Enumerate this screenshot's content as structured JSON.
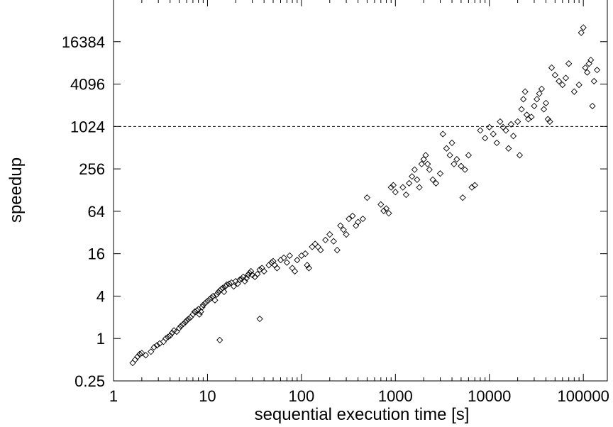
{
  "chart_data": {
    "type": "scatter",
    "title": "",
    "xlabel": "sequential execution time [s]",
    "ylabel": "speedup",
    "xscale": "log",
    "yscale": "log",
    "xlim": [
      1,
      180000
    ],
    "ylim": [
      0.25,
      65536
    ],
    "grid": false,
    "legend": "none",
    "marker": "diamond",
    "marker_color": "#000000",
    "x_ticks": [
      1,
      10,
      100,
      1000,
      10000,
      100000
    ],
    "x_tick_labels": [
      "1",
      "10",
      "100",
      "1000",
      "10000",
      "100000"
    ],
    "y_ticks": [
      0.25,
      1,
      4,
      16,
      64,
      256,
      1024,
      4096,
      16384
    ],
    "y_tick_labels": [
      "0.25",
      "1",
      "4",
      "16",
      "64",
      "256",
      "1024",
      "4096",
      "16384"
    ],
    "reference_line": {
      "y": 1024,
      "style": "dashed"
    },
    "points": [
      [
        1.6,
        0.45
      ],
      [
        1.7,
        0.5
      ],
      [
        1.8,
        0.55
      ],
      [
        1.9,
        0.6
      ],
      [
        2.0,
        0.62
      ],
      [
        2.2,
        0.58
      ],
      [
        2.5,
        0.65
      ],
      [
        2.7,
        0.75
      ],
      [
        2.9,
        0.8
      ],
      [
        3.1,
        0.85
      ],
      [
        3.4,
        0.9
      ],
      [
        3.6,
        1.0
      ],
      [
        3.8,
        1.05
      ],
      [
        4.0,
        1.1
      ],
      [
        4.2,
        1.2
      ],
      [
        4.4,
        1.3
      ],
      [
        4.7,
        1.25
      ],
      [
        5.0,
        1.4
      ],
      [
        5.2,
        1.5
      ],
      [
        5.5,
        1.6
      ],
      [
        5.8,
        1.7
      ],
      [
        6.0,
        1.8
      ],
      [
        6.3,
        1.9
      ],
      [
        6.6,
        2.0
      ],
      [
        7.0,
        2.2
      ],
      [
        7.3,
        2.4
      ],
      [
        7.7,
        2.5
      ],
      [
        8.0,
        2.6
      ],
      [
        8.2,
        2.2
      ],
      [
        8.5,
        2.4
      ],
      [
        8.8,
        2.8
      ],
      [
        9.0,
        3.0
      ],
      [
        9.5,
        3.2
      ],
      [
        10,
        3.4
      ],
      [
        10.5,
        3.6
      ],
      [
        11,
        3.8
      ],
      [
        11.5,
        4.0
      ],
      [
        12,
        3.5
      ],
      [
        12.5,
        4.2
      ],
      [
        13,
        4.5
      ],
      [
        13.5,
        4.8
      ],
      [
        14,
        5.0
      ],
      [
        14.5,
        5.2
      ],
      [
        15,
        4.6
      ],
      [
        15.5,
        5.5
      ],
      [
        16,
        5.8
      ],
      [
        17,
        6.0
      ],
      [
        18,
        6.2
      ],
      [
        19,
        5.5
      ],
      [
        20,
        6.5
      ],
      [
        21,
        6.0
      ],
      [
        22,
        6.8
      ],
      [
        23,
        7.0
      ],
      [
        24,
        7.5
      ],
      [
        25,
        6.5
      ],
      [
        26,
        7.2
      ],
      [
        27,
        8.0
      ],
      [
        28,
        8.5
      ],
      [
        29,
        9.0
      ],
      [
        30,
        8.0
      ],
      [
        32,
        7.5
      ],
      [
        34,
        8.2
      ],
      [
        36,
        9.5
      ],
      [
        38,
        10
      ],
      [
        40,
        9.0
      ],
      [
        45,
        11
      ],
      [
        48,
        12
      ],
      [
        50,
        12.5
      ],
      [
        52,
        11
      ],
      [
        55,
        10
      ],
      [
        60,
        13
      ],
      [
        65,
        14
      ],
      [
        70,
        12
      ],
      [
        75,
        15
      ],
      [
        80,
        10
      ],
      [
        85,
        9
      ],
      [
        90,
        13
      ],
      [
        100,
        15
      ],
      [
        110,
        16
      ],
      [
        115,
        11
      ],
      [
        120,
        10
      ],
      [
        130,
        20
      ],
      [
        140,
        22
      ],
      [
        150,
        20
      ],
      [
        160,
        18
      ],
      [
        180,
        25
      ],
      [
        200,
        30
      ],
      [
        220,
        24
      ],
      [
        240,
        18
      ],
      [
        260,
        40
      ],
      [
        280,
        35
      ],
      [
        300,
        30
      ],
      [
        320,
        50
      ],
      [
        350,
        55
      ],
      [
        380,
        40
      ],
      [
        400,
        45
      ],
      [
        450,
        50
      ],
      [
        500,
        100
      ],
      [
        700,
        80
      ],
      [
        750,
        65
      ],
      [
        800,
        70
      ],
      [
        850,
        60
      ],
      [
        900,
        140
      ],
      [
        950,
        150
      ],
      [
        1000,
        120
      ],
      [
        1200,
        140
      ],
      [
        1300,
        110
      ],
      [
        1400,
        160
      ],
      [
        1500,
        200
      ],
      [
        1600,
        250
      ],
      [
        1700,
        180
      ],
      [
        1800,
        140
      ],
      [
        1900,
        300
      ],
      [
        2000,
        350
      ],
      [
        2100,
        400
      ],
      [
        2200,
        300
      ],
      [
        2300,
        250
      ],
      [
        2500,
        180
      ],
      [
        2700,
        160
      ],
      [
        3000,
        220
      ],
      [
        3200,
        800
      ],
      [
        3500,
        500
      ],
      [
        3800,
        400
      ],
      [
        4000,
        600
      ],
      [
        4200,
        300
      ],
      [
        4500,
        350
      ],
      [
        5000,
        280
      ],
      [
        5200,
        100
      ],
      [
        5500,
        250
      ],
      [
        6000,
        400
      ],
      [
        6500,
        140
      ],
      [
        7000,
        150
      ],
      [
        8000,
        900
      ],
      [
        9000,
        700
      ],
      [
        10000,
        1000
      ],
      [
        11000,
        800
      ],
      [
        12000,
        600
      ],
      [
        13000,
        1200
      ],
      [
        14000,
        1000
      ],
      [
        15000,
        900
      ],
      [
        16000,
        500
      ],
      [
        17000,
        1100
      ],
      [
        18000,
        750
      ],
      [
        20000,
        1200
      ],
      [
        21000,
        400
      ],
      [
        22000,
        1800
      ],
      [
        23000,
        2500
      ],
      [
        24000,
        3200
      ],
      [
        25000,
        1500
      ],
      [
        26000,
        1300
      ],
      [
        28000,
        1400
      ],
      [
        30000,
        2000
      ],
      [
        32000,
        2500
      ],
      [
        34000,
        3000
      ],
      [
        36000,
        3500
      ],
      [
        38000,
        1800
      ],
      [
        40000,
        2200
      ],
      [
        42000,
        1300
      ],
      [
        44000,
        1200
      ],
      [
        46000,
        7000
      ],
      [
        50000,
        5500
      ],
      [
        55000,
        4500
      ],
      [
        60000,
        4000
      ],
      [
        65000,
        5000
      ],
      [
        70000,
        8000
      ],
      [
        80000,
        3200
      ],
      [
        90000,
        4000
      ],
      [
        95000,
        22000
      ],
      [
        100000,
        26000
      ],
      [
        105000,
        7000
      ],
      [
        110000,
        6000
      ],
      [
        115000,
        8000
      ],
      [
        120000,
        9000
      ],
      [
        125000,
        2000
      ],
      [
        130000,
        4500
      ],
      [
        140000,
        6500
      ],
      [
        13.5,
        0.95
      ],
      [
        36,
        1.9
      ]
    ]
  }
}
